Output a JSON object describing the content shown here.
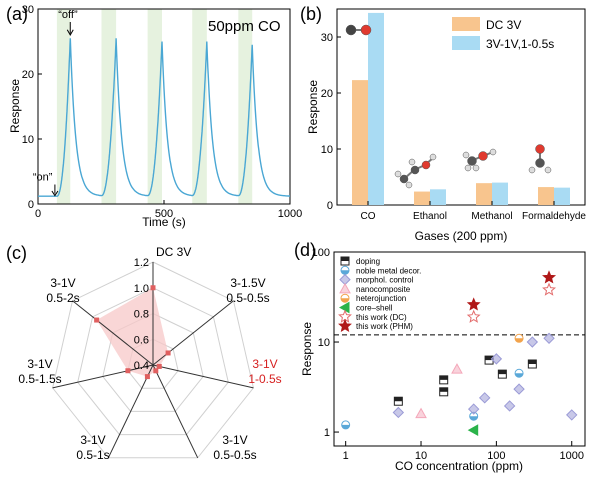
{
  "chart_data": [
    {
      "panel": "(a)",
      "type": "line",
      "annotation": "50ppm CO",
      "xlabel": "Time (s)",
      "ylabel": "Response",
      "xlim": [
        0,
        1000
      ],
      "ylim": [
        0,
        30
      ],
      "xticks": [
        "0",
        "500",
        "1000"
      ],
      "yticks": [
        "0",
        "10",
        "20",
        "30"
      ],
      "markers": [
        {
          "text": "“on”"
        },
        {
          "text": "“off”"
        }
      ],
      "shade_color": "#e6f2df",
      "line_color": "#4aa7d4",
      "pulses": [
        {
          "on": 75,
          "off": 128,
          "peak": 25.5
        },
        {
          "on": 252,
          "off": 310,
          "peak": 25.5
        },
        {
          "on": 435,
          "off": 492,
          "peak": 25.0
        },
        {
          "on": 612,
          "off": 670,
          "peak": 25.0
        },
        {
          "on": 795,
          "off": 850,
          "peak": 24.5
        }
      ],
      "baseline": 1.2
    },
    {
      "panel": "(b)",
      "type": "bar",
      "xlabel": "Gases (200 ppm)",
      "ylabel": "Response",
      "ylim": [
        0,
        35
      ],
      "yticks": [
        "0",
        "10",
        "20",
        "30"
      ],
      "categories": [
        "CO",
        "Ethanol",
        "Methanol",
        "Formaldehyde"
      ],
      "series": [
        {
          "name": "DC 3V",
          "color": "#f8c58e",
          "values": [
            22.3,
            2.4,
            3.9,
            3.2
          ]
        },
        {
          "name": "3V-1V,1-0.5s",
          "color": "#a9dbf3",
          "values": [
            34.3,
            2.8,
            4.0,
            3.1
          ]
        }
      ]
    },
    {
      "panel": "(c)",
      "type": "radar",
      "axes": [
        "DC 3V",
        "3-1.5V\n0.5-0.5s",
        "3-1V\n1-0.5s",
        "3-1V\n0.5-0.5s",
        "3-1V\n0.5-1s",
        "3-1V\n0.5-1.5s",
        "3-1V\n0.5-2s"
      ],
      "highlight_axis": 2,
      "rings": [
        "0.4",
        "0.6",
        "0.8",
        "1.0",
        "1.2"
      ],
      "values": [
        1.0,
        0.55,
        0.45,
        0.45,
        0.5,
        0.6,
        0.96
      ],
      "fill_color": "#f7c8c8",
      "point_color": "#e06060"
    },
    {
      "panel": "(d)",
      "type": "scatter",
      "xlabel": "CO concentration (ppm)",
      "ylabel": "Response",
      "xscale": "log",
      "yscale": "log",
      "xlim": [
        0.7,
        1500
      ],
      "ylim": [
        0.7,
        100
      ],
      "xticks": [
        "1",
        "10",
        "100",
        "1000"
      ],
      "yticks": [
        "1",
        "10",
        "100"
      ],
      "threshold": 12,
      "series": [
        {
          "name": "doping",
          "marker": "square",
          "color": "#222222",
          "points": [
            [
              5,
              2.2
            ],
            [
              20,
              2.8
            ],
            [
              20,
              3.8
            ],
            [
              80,
              6.3
            ],
            [
              120,
              4.4
            ],
            [
              300,
              5.7
            ]
          ]
        },
        {
          "name": "noble metal decor.",
          "marker": "circle",
          "color": "#5aa8d8",
          "points": [
            [
              1,
              1.2
            ],
            [
              50,
              1.5
            ],
            [
              200,
              4.5
            ]
          ]
        },
        {
          "name": "morphol. control",
          "marker": "diamond",
          "color": "#9a9ad6",
          "points": [
            [
              5,
              1.65
            ],
            [
              50,
              1.8
            ],
            [
              70,
              2.4
            ],
            [
              100,
              6.5
            ],
            [
              150,
              1.95
            ],
            [
              200,
              3.0
            ],
            [
              300,
              10
            ],
            [
              500,
              11
            ],
            [
              1000,
              1.55
            ]
          ]
        },
        {
          "name": "nanocomposite",
          "marker": "triangle",
          "color": "#f4a7b9",
          "points": [
            [
              10,
              1.6
            ],
            [
              30,
              5.0
            ]
          ]
        },
        {
          "name": "heterojunction",
          "marker": "circle",
          "color": "#f2a34c",
          "points": [
            [
              200,
              11
            ]
          ]
        },
        {
          "name": "core–shell",
          "marker": "triangle-left",
          "color": "#2bb34a",
          "points": [
            [
              50,
              1.05
            ]
          ]
        },
        {
          "name": "this work (DC)",
          "marker": "star-open",
          "color": "#e36c6c",
          "points": [
            [
              50,
              19
            ],
            [
              500,
              38
            ]
          ]
        },
        {
          "name": "this work (PHM)",
          "marker": "star",
          "color": "#b01818",
          "points": [
            [
              50,
              26
            ],
            [
              500,
              52
            ]
          ]
        }
      ]
    }
  ],
  "labels": {
    "a": "(a)",
    "b": "(b)",
    "c": "(c)",
    "d": "(d)"
  }
}
